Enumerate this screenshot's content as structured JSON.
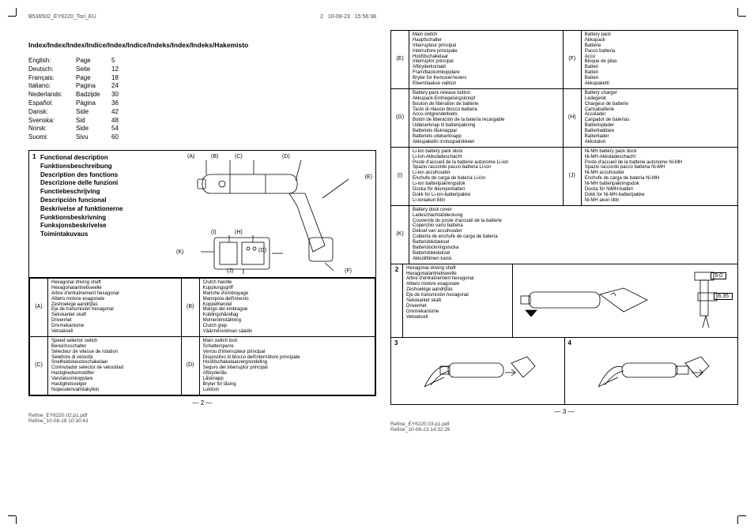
{
  "doc_header_left": "B536502_EY6220_Tori_EU",
  "doc_header_right_page": "2",
  "doc_header_right_date": "10-08-23",
  "doc_header_right_time": "15:56:38",
  "index_title": "Index/Index/Index/Indice/Index/Indice/Indeks/Index/Indeks/Hakemisto",
  "langs": [
    {
      "lang": "English:",
      "word": "Page",
      "num": "5"
    },
    {
      "lang": "Deutsch:",
      "word": "Seite",
      "num": "12"
    },
    {
      "lang": "Français:",
      "word": "Page",
      "num": "18"
    },
    {
      "lang": "Italiano:",
      "word": "Pagina",
      "num": "24"
    },
    {
      "lang": "Nederlands:",
      "word": "Badzijde",
      "num": "30"
    },
    {
      "lang": "Español:",
      "word": "Página",
      "num": "36"
    },
    {
      "lang": "Dansk:",
      "word": "Side",
      "num": "42"
    },
    {
      "lang": "Svenska:",
      "word": "Sid",
      "num": "48"
    },
    {
      "lang": "Norsk:",
      "word": "Side",
      "num": "54"
    },
    {
      "lang": "Suomi:",
      "word": "Sivu",
      "num": "60"
    }
  ],
  "section1_num": "1",
  "functional_titles": [
    "Functional description",
    "Funktionsbeschreibung",
    "Description des fonctions",
    "Descrizione delle funzioni",
    "Functiebeschrijving",
    "Descripción funcional",
    "Beskrivelse af funktionerne",
    "Funktionsbeskrivning",
    "Funksjonsbeskrivelse",
    "Toimintakuvaus"
  ],
  "diagram_labels": {
    "A": "(A)",
    "B": "(B)",
    "C": "(C)",
    "D": "(D)",
    "E": "(E)",
    "F": "(F)",
    "G": "(G)",
    "H": "(H)",
    "I": "(I)",
    "J": "(J)",
    "K": "(K)"
  },
  "parts_left": [
    {
      "letter": "(A)",
      "col1": [
        "Hexagonal driving shaft",
        "Hexagonalantriebswelle",
        "Arbre d'entraînement hexagonal",
        "Albero motore esagonale",
        "Zeshoekige aandrijfas",
        "Eje de transmisión hexagonal",
        "Sekskantet skaft",
        "Drivenhet",
        "Drivmekanisme",
        "Vetoakseli"
      ],
      "letter2": "(B)",
      "col2": [
        "Clutch handle",
        "Kupplungsgriff",
        "Manche d'embrayage",
        "Manopola dell'innesto",
        "Koppelhendel",
        "Mango del embrague",
        "Koblingshåndtag",
        "Momentinställning",
        "Clutch grep",
        "Väännönvoiman säädin"
      ]
    },
    {
      "letter": "(C)",
      "col1": [
        "Speed selector switch",
        "Bereichsschalter",
        "Sélecteur de vitesse de rotation",
        "Selettore di velocità",
        "Snelheidskeuzeschakelaar",
        "Conmutador selector de velocidad",
        "Hastighedsomskifter",
        "Varvtalsomkopplare",
        "Hastighetsvelger",
        "Nopeudenvalintakytkin"
      ],
      "letter2": "(D)",
      "col2": [
        "Main switch lock",
        "Schaltersperre",
        "Verrou d'interrupteur principal",
        "Dispositivo di blocco dell'interruttore principale",
        "Hoofdschakelaarvergrendeling",
        "Seguro del interruptor principal",
        "Afbryderlås",
        "Låsknapp",
        "Bryter for låsing",
        "Lukitsin"
      ]
    }
  ],
  "parts_right": [
    {
      "letter": "(E)",
      "col1": [
        "Main switch",
        "Hauptschalter",
        "Interrupteur principal",
        "Interruttore principale",
        "Hoofdschakelaar",
        "Interruptor principal",
        "Afbryderkontakt",
        "Fram/backomkopplare",
        "Bryter for fremover/revers",
        "Eteen/taakse valitsin"
      ],
      "letter2": "(F)",
      "col2": [
        "Battery pack",
        "Akkupack",
        "Batterie",
        "Pacco batteria",
        "Accu",
        "Bloque de pilas",
        "Batteri",
        "Batteri",
        "Batteri",
        "Akkupaketti"
      ]
    },
    {
      "letter": "(G)",
      "col1": [
        "Battery pack release button",
        "Akkupack-Entriegelungsknopf",
        "Bouton de libération de batterie",
        "Tasto di rilascio blocco batteria",
        "Accu-ontgrendeltoets",
        "Botón de liberación de la batería recargable",
        "Udløserknap til batteripakning",
        "Batteriets låsknappar",
        "Batteriets utløserknapp",
        "Akkupaketin irrotuspainikkeet"
      ],
      "letter2": "(H)",
      "col2": [
        "Battery charger",
        "Ladegerät",
        "Chargeur de batterie",
        "Caricabatterie",
        "Acculader",
        "Cargador de baterías",
        "Batterioplader",
        "Batteriladdare",
        "Batterilader",
        "Akkulaturi"
      ]
    },
    {
      "letter": "(I)",
      "col1": [
        "Li-ion battery pack dock",
        "Li-Ion-Akkuladeschacht",
        "Poste d'accueil de la batterie autonome Li-ion",
        "Spazio raccordo pacco batteria Li-ion",
        "Li-ion accuhouder",
        "Enchufe de carga de batería Li-ión",
        "Li-ion batteripakningsdok",
        "Docka för litiumjonbatteri",
        "Dokk for Li-ion-batteripakke",
        "Li-ioniakun liitin"
      ],
      "letter2": "(J)",
      "col2": [
        "Ni-MH battery pack dock",
        "Ni-MH-Akkuladeschacht",
        "Poste d'accueil de la batterie autonome Ni-MH",
        "Spazio raccordo pacco batteria Ni-MH",
        "Ni-MH accuhouder",
        "Enchufe de carga de batería Ni-MH",
        "Ni-MH batteripakningsdok",
        "Docka för NiMH-batteri",
        "Dokk for Ni-MH-batteripakke",
        "Ni-MH akun liitin"
      ]
    },
    {
      "letter": "(K)",
      "colspan": true,
      "col1": [
        "Battery dock cover",
        "Ladeschachtabdeckung",
        "Couvercle du poste d'accueil de la batterie",
        "Coperchio vano batteria",
        "Deksel van accuhouder",
        "Cubierta de enchufe de carga de batería",
        "Batteridokdæksel",
        "Batteridockningslucka",
        "Batteridokkdeksel",
        "Akkuliittimen kansi"
      ]
    }
  ],
  "section2_num": "2",
  "section2_list": [
    "Hexagonal driving shaft",
    "Hexagonalantriebswelle",
    "Arbre d'entraînement hexagonal",
    "Albero motore esagonale",
    "Zeshoekige aandrijfas",
    "Eje de transmisión hexagonal",
    "Sekskantet skaft",
    "Drivenhet",
    "Drivmekanisme",
    "Vetoakseli"
  ],
  "dim1": "9.0",
  "dim2": "6.35",
  "section3_num": "3",
  "section4_num": "4",
  "page_num_left": "— 2 —",
  "page_num_right": "— 3 —",
  "footer_left_1": "Refine_EY6220.02.p1.pdf",
  "footer_left_2": "Refine_10-08-18    10:30:43",
  "footer_right_1": "Refine_EY6220.03.p1.pdf",
  "footer_right_2": "Refine_10-08-23    14:32:26"
}
